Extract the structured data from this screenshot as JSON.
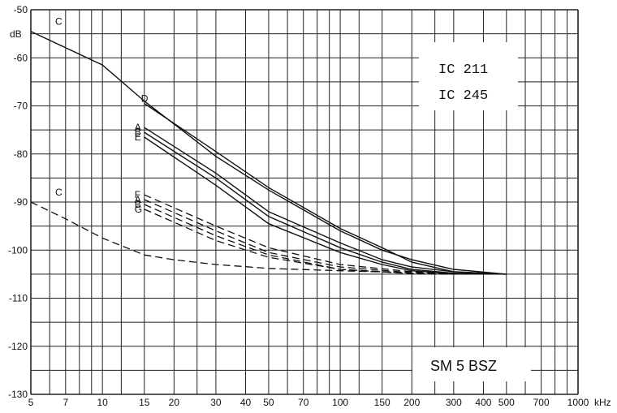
{
  "chart_data": {
    "type": "line",
    "ylabel": "dB",
    "xunit": "kHz",
    "xscale": "log",
    "xlim": [
      5,
      1000
    ],
    "ylim": [
      -130,
      -50
    ],
    "grid": true,
    "x_ticks": [
      "5",
      "7",
      "10",
      "15",
      "20",
      "30",
      "40",
      "50",
      "70",
      "100",
      "150",
      "200",
      "300",
      "400",
      "500",
      "700",
      "1000"
    ],
    "y_ticks": [
      "-50",
      "-60",
      "-70",
      "-80",
      "-90",
      "-100",
      "-110",
      "-120",
      "-130"
    ],
    "y_tick_values": [
      -50,
      -60,
      -70,
      -80,
      -90,
      -100,
      -110,
      -120,
      -130
    ],
    "annotations": [
      "IC 211",
      "IC 245",
      "SM 5 BSZ"
    ],
    "series": [
      {
        "name": "C",
        "style": "solid",
        "points": [
          [
            5,
            -54.5
          ],
          [
            10,
            -61.5
          ],
          [
            15,
            -69
          ],
          [
            30,
            -80.5
          ],
          [
            50,
            -87.5
          ],
          [
            100,
            -96
          ],
          [
            150,
            -100
          ],
          [
            200,
            -102
          ],
          [
            300,
            -104
          ],
          [
            500,
            -105
          ]
        ]
      },
      {
        "name": "D",
        "style": "solid",
        "points": [
          [
            15,
            -69.5
          ],
          [
            30,
            -79.5
          ],
          [
            50,
            -87
          ],
          [
            100,
            -95.5
          ],
          [
            150,
            -99.5
          ],
          [
            200,
            -102.5
          ],
          [
            300,
            -104.5
          ],
          [
            500,
            -105
          ]
        ]
      },
      {
        "name": "A",
        "style": "solid",
        "points": [
          [
            15,
            -74.5
          ],
          [
            30,
            -84
          ],
          [
            50,
            -92
          ],
          [
            100,
            -98.5
          ],
          [
            150,
            -102
          ],
          [
            200,
            -103.5
          ],
          [
            300,
            -104.5
          ],
          [
            500,
            -105
          ]
        ]
      },
      {
        "name": "B",
        "style": "solid",
        "points": [
          [
            15,
            -75.5
          ],
          [
            30,
            -85
          ],
          [
            50,
            -93
          ],
          [
            100,
            -99.5
          ],
          [
            150,
            -102.5
          ],
          [
            200,
            -104
          ],
          [
            300,
            -104.8
          ],
          [
            500,
            -105
          ]
        ]
      },
      {
        "name": "E",
        "style": "solid",
        "points": [
          [
            15,
            -76.5
          ],
          [
            30,
            -86.5
          ],
          [
            50,
            -94.5
          ],
          [
            100,
            -100.5
          ],
          [
            150,
            -103
          ],
          [
            200,
            -104.3
          ],
          [
            300,
            -104.9
          ],
          [
            500,
            -105
          ]
        ]
      },
      {
        "name": "F",
        "style": "dashed",
        "points": [
          [
            15,
            -88.5
          ],
          [
            30,
            -95
          ],
          [
            50,
            -99.5
          ],
          [
            100,
            -103
          ],
          [
            200,
            -104.5
          ],
          [
            300,
            -105
          ],
          [
            500,
            -105
          ]
        ]
      },
      {
        "name": "A",
        "style": "dashed",
        "points": [
          [
            15,
            -89.5
          ],
          [
            30,
            -96
          ],
          [
            50,
            -100.5
          ],
          [
            100,
            -103.5
          ],
          [
            200,
            -104.7
          ],
          [
            300,
            -105
          ],
          [
            500,
            -105
          ]
        ]
      },
      {
        "name": "B",
        "style": "dashed",
        "points": [
          [
            15,
            -90.5
          ],
          [
            30,
            -97
          ],
          [
            50,
            -101
          ],
          [
            100,
            -104
          ],
          [
            200,
            -104.8
          ],
          [
            300,
            -105
          ],
          [
            500,
            -105
          ]
        ]
      },
      {
        "name": "G",
        "style": "dashed",
        "points": [
          [
            15,
            -91.5
          ],
          [
            30,
            -98
          ],
          [
            50,
            -101.5
          ],
          [
            100,
            -104
          ],
          [
            200,
            -104.9
          ],
          [
            300,
            -105
          ],
          [
            500,
            -105
          ]
        ]
      },
      {
        "name": "C",
        "style": "dashed",
        "points": [
          [
            5,
            -90
          ],
          [
            7,
            -93.5
          ],
          [
            10,
            -97.5
          ],
          [
            15,
            -101
          ],
          [
            20,
            -102
          ],
          [
            30,
            -103
          ],
          [
            50,
            -103.8
          ],
          [
            100,
            -104.3
          ],
          [
            200,
            -104.7
          ],
          [
            500,
            -105
          ]
        ]
      }
    ]
  }
}
